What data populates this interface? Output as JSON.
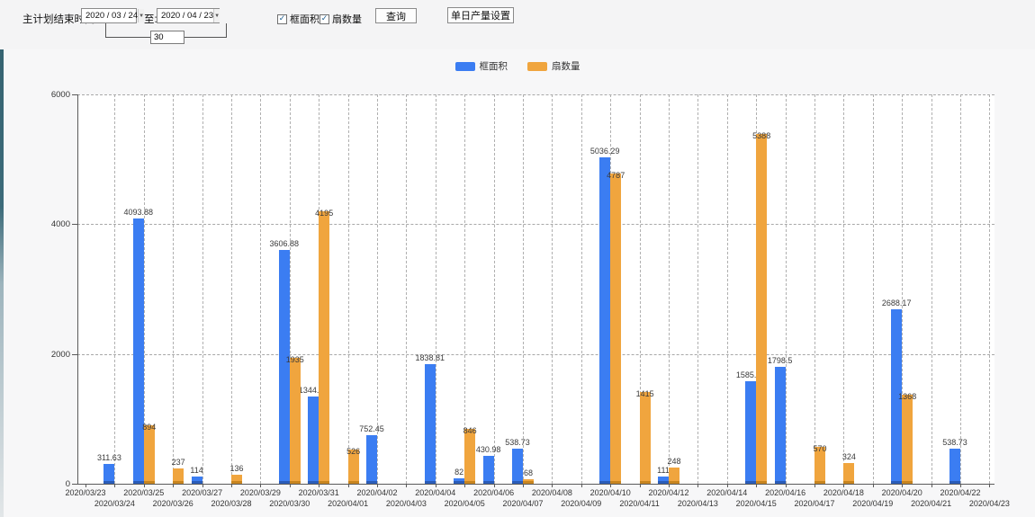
{
  "toolbar": {
    "plan_end_label": "主计划结束时间:",
    "date_from": "2020 / 03 / 24",
    "to_label": "至:",
    "date_to": "2020 / 04 / 23",
    "days_between": "30",
    "checkbox_area": {
      "label": "框面积",
      "checked": true
    },
    "checkbox_fan": {
      "label": "扇数量",
      "checked": true
    },
    "query_button": "查询",
    "daily_output_button": "单日产量设置"
  },
  "chart_data": {
    "type": "bar",
    "title": "",
    "xlabel": "",
    "ylabel": "",
    "ylim": [
      0,
      6000
    ],
    "yticks": [
      0,
      2000,
      4000,
      6000
    ],
    "grid": true,
    "legend_position": "top-center",
    "categories": [
      "2020/03/23",
      "2020/03/24",
      "2020/03/25",
      "2020/03/26",
      "2020/03/27",
      "2020/03/28",
      "2020/03/29",
      "2020/03/30",
      "2020/03/31",
      "2020/04/01",
      "2020/04/02",
      "2020/04/03",
      "2020/04/04",
      "2020/04/05",
      "2020/04/06",
      "2020/04/07",
      "2020/04/08",
      "2020/04/09",
      "2020/04/10",
      "2020/04/11",
      "2020/04/12",
      "2020/04/13",
      "2020/04/14",
      "2020/04/15",
      "2020/04/16",
      "2020/04/17",
      "2020/04/18",
      "2020/04/19",
      "2020/04/20",
      "2020/04/21",
      "2020/04/22",
      "2020/04/23"
    ],
    "series": [
      {
        "name": "框面积",
        "key": "area",
        "color": "#3b7df2",
        "values": [
          null,
          311.63,
          4093.88,
          null,
          114,
          null,
          null,
          3606.88,
          1344.95,
          null,
          752.45,
          null,
          1838.81,
          82,
          430.98,
          538.73,
          null,
          null,
          5036.29,
          null,
          111,
          null,
          null,
          1585.96,
          1798.5,
          null,
          null,
          null,
          2688.17,
          null,
          538.73,
          null
        ]
      },
      {
        "name": "扇数量",
        "key": "fan",
        "color": "#f0a53e",
        "values": [
          null,
          null,
          894,
          237,
          null,
          136,
          null,
          1935,
          4195,
          526,
          null,
          null,
          null,
          846,
          null,
          68,
          null,
          null,
          4787,
          1415,
          248,
          null,
          null,
          5388,
          null,
          570,
          324,
          null,
          1368,
          null,
          null,
          null
        ]
      }
    ]
  }
}
